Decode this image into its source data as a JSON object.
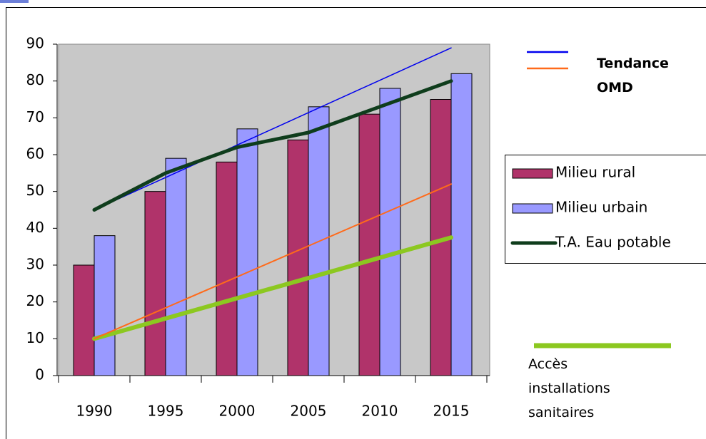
{
  "chart_data": {
    "type": "bar",
    "categories": [
      "1990",
      "1995",
      "2000",
      "2005",
      "2010",
      "2015"
    ],
    "series": [
      {
        "name": "Milieu rural",
        "color": "#b0336a",
        "kind": "bar",
        "values": [
          30,
          50,
          58,
          64,
          71,
          75
        ]
      },
      {
        "name": "Milieu urbain",
        "color": "#9999ff",
        "kind": "bar",
        "values": [
          38,
          59,
          67,
          73,
          78,
          82
        ]
      },
      {
        "name": "T.A. Eau potable",
        "color": "#0f3d1c",
        "kind": "line",
        "width": 5,
        "values": [
          45,
          55,
          62,
          66,
          73,
          80
        ]
      },
      {
        "name": "Accès installations sanitaires",
        "color": "#8cc820",
        "kind": "line",
        "width": 6,
        "values": [
          10,
          15.5,
          21,
          26.5,
          32,
          37.5
        ]
      },
      {
        "color": "#0000ee",
        "kind": "line",
        "width": 1.5,
        "values": [
          45,
          53.8,
          62.6,
          71.4,
          80.2,
          89
        ]
      },
      {
        "color": "#ff6a1a",
        "kind": "line",
        "width": 2,
        "values": [
          10,
          18.4,
          26.8,
          35.2,
          43.6,
          52
        ]
      }
    ],
    "trend_label": "Tendance OMD",
    "ylim": [
      0,
      90
    ],
    "yticks": [
      0,
      10,
      20,
      30,
      40,
      50,
      60,
      70,
      80,
      90
    ]
  }
}
